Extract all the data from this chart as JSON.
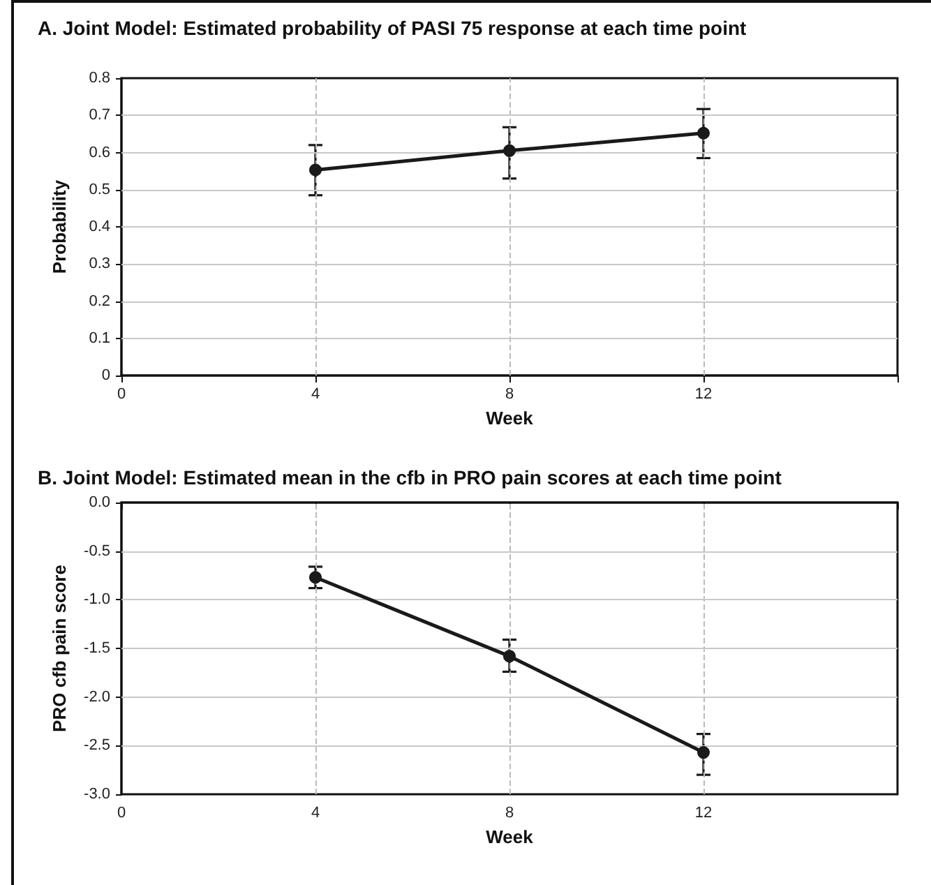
{
  "chart_data": [
    {
      "type": "line",
      "title": "A. Joint Model: Estimated probability of PASI 75 response at each time point",
      "xlabel": "Week",
      "ylabel": "Probability",
      "x": [
        4,
        8,
        12
      ],
      "series": [
        {
          "color": "#1a1a1a",
          "values": [
            0.553,
            0.605,
            0.652
          ],
          "errors": [
            [
              0.485,
              0.62
            ],
            [
              0.53,
              0.668
            ],
            [
              0.585,
              0.717
            ]
          ]
        }
      ],
      "xlim": [
        0,
        16
      ],
      "xticks": [
        0,
        4,
        8,
        12,
        {
          "value": 16,
          "label": null
        }
      ],
      "ylim": [
        0,
        0.8
      ],
      "yticks": [
        0,
        0.1,
        0.2,
        0.3,
        0.4,
        0.5,
        0.6,
        0.7,
        0.8
      ],
      "grid": true,
      "marker": "circle",
      "line_style": "solid"
    },
    {
      "type": "line",
      "title": "B. Joint Model: Estimated mean in the cfb in PRO pain scores at each time point",
      "xlabel": "Week",
      "ylabel": "PRO cfb pain score",
      "x": [
        4,
        8,
        12
      ],
      "series": [
        {
          "color": "#1a1a1a",
          "values": [
            -0.77,
            -1.58,
            -2.57
          ],
          "errors": [
            [
              -0.88,
              -0.66
            ],
            [
              -1.74,
              -1.41
            ],
            [
              -2.8,
              -2.38
            ]
          ]
        }
      ],
      "xlim": [
        0,
        16
      ],
      "xticks": [
        0,
        4,
        8,
        12,
        {
          "value": 16,
          "label": null
        }
      ],
      "ylim": [
        -3,
        0
      ],
      "yticks": [
        {
          "value": -3,
          "label": "-3.0"
        },
        -2.5,
        {
          "value": -2,
          "label": "-2.0"
        },
        -1.5,
        {
          "value": -1,
          "label": "-1.0"
        },
        -0.5,
        {
          "value": 0,
          "label": "0.0"
        }
      ],
      "grid": true,
      "marker": "circle",
      "line_style": "solid"
    }
  ]
}
